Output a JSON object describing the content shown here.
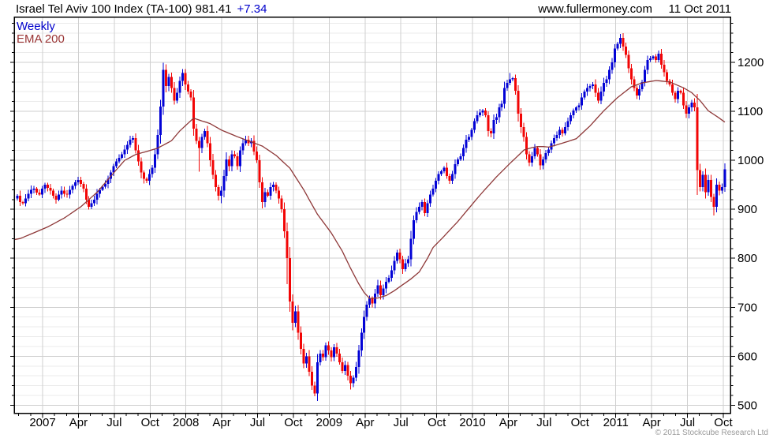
{
  "header": {
    "title_text": "Israel Tel Aviv 100 Index (TA-100) 981.41",
    "change_text": "+7.34",
    "website": "www.fullermoney.com",
    "date": "11 Oct 2011"
  },
  "legend": {
    "timeframe": "Weekly",
    "overlay": "EMA 200"
  },
  "footer": {
    "copyright": "© 2011 Stockcube Research Ltd"
  },
  "colors": {
    "up": "#0303d6",
    "down": "#f20505",
    "ema": "#8e3838",
    "accent_blue": "#0000cc",
    "grid_major": "#cfcfcf",
    "grid_minor": "#ebebeb",
    "border": "#000000",
    "copyright_gray": "#9a9a9a"
  },
  "chart_data": {
    "type": "candlestick",
    "title": "Israel Tel Aviv 100 Index (TA-100)",
    "timeframe": "Weekly",
    "overlay": "EMA 200",
    "last_price": 981.41,
    "change": 7.34,
    "as_of_date": "11 Oct 2011",
    "y_axis": {
      "tick_labels": [
        "500",
        "600",
        "700",
        "800",
        "900",
        "1000",
        "1100",
        "1200"
      ],
      "major_step": 100,
      "minor_step": 20,
      "ylim": [
        484,
        1292
      ],
      "side": "right"
    },
    "x_axis": {
      "tick_labels": [
        "2007",
        "Apr",
        "Jul",
        "Oct",
        "2008",
        "Apr",
        "Jul",
        "Oct",
        "2009",
        "Apr",
        "Jul",
        "Oct",
        "2010",
        "Apr",
        "Jul",
        "Oct",
        "2011",
        "Apr",
        "Jul",
        "Oct"
      ]
    },
    "first_open": 922,
    "weekly_closes": [
      928,
      915,
      912,
      922,
      932,
      940,
      942,
      934,
      930,
      942,
      950,
      944,
      938,
      928,
      920,
      930,
      938,
      932,
      930,
      940,
      948,
      955,
      960,
      952,
      942,
      920,
      905,
      912,
      920,
      932,
      940,
      946,
      952,
      962,
      975,
      988,
      998,
      1005,
      1012,
      1022,
      1032,
      1042,
      1045,
      1020,
      998,
      975,
      962,
      958,
      972,
      985,
      1012,
      1052,
      1110,
      1185,
      1152,
      1170,
      1148,
      1122,
      1138,
      1162,
      1178,
      1155,
      1140,
      1128,
      1065,
      1040,
      1025,
      1048,
      1060,
      1035,
      1000,
      970,
      945,
      928,
      938,
      968,
      1002,
      988,
      1012,
      1008,
      988,
      1020,
      1035,
      1042,
      1035,
      1040,
      1018,
      1000,
      955,
      915,
      935,
      928,
      945,
      950,
      938,
      922,
      900,
      855,
      800,
      712,
      668,
      692,
      648,
      615,
      585,
      600,
      568,
      540,
      524,
      588,
      605,
      598,
      622,
      612,
      598,
      618,
      605,
      588,
      570,
      582,
      560,
      545,
      556,
      578,
      612,
      648,
      680,
      705,
      718,
      708,
      728,
      745,
      725,
      738,
      752,
      760,
      775,
      795,
      812,
      798,
      778,
      790,
      798,
      840,
      878,
      895,
      905,
      915,
      892,
      912,
      930,
      942,
      958,
      972,
      978,
      985,
      968,
      958,
      972,
      992,
      1002,
      1008,
      1025,
      1042,
      1048,
      1062,
      1080,
      1092,
      1098,
      1102,
      1092,
      1060,
      1055,
      1082,
      1088,
      1108,
      1115,
      1148,
      1158,
      1165,
      1168,
      1142,
      1095,
      1068,
      1048,
      1012,
      995,
      1008,
      1025,
      1012,
      990,
      1002,
      1015,
      1022,
      1035,
      1045,
      1052,
      1062,
      1055,
      1068,
      1080,
      1092,
      1102,
      1108,
      1112,
      1128,
      1140,
      1148,
      1152,
      1155,
      1138,
      1122,
      1140,
      1158,
      1165,
      1185,
      1200,
      1228,
      1238,
      1250,
      1232,
      1215,
      1188,
      1165,
      1148,
      1132,
      1145,
      1160,
      1185,
      1205,
      1208,
      1212,
      1205,
      1218,
      1195,
      1180,
      1162,
      1155,
      1138,
      1125,
      1142,
      1138,
      1112,
      1095,
      1108,
      1118,
      1108,
      980,
      945,
      970,
      935,
      960,
      925,
      905,
      950,
      938,
      945,
      981.41
    ],
    "wick_overrides": [
      {
        "week": 53,
        "high": 1199
      },
      {
        "week": 66,
        "low": 977
      },
      {
        "week": 74,
        "low": 912
      },
      {
        "week": 98,
        "low": 747
      },
      {
        "week": 108,
        "low": 518
      },
      {
        "week": 121,
        "low": 532
      },
      {
        "week": 179,
        "high": 1178
      },
      {
        "week": 184,
        "low": 1038
      },
      {
        "week": 219,
        "high": 1258
      },
      {
        "week": 247,
        "low": 929
      },
      {
        "week": 253,
        "low": 887
      }
    ],
    "ema_anchors": [
      [
        0,
        838
      ],
      [
        6,
        852
      ],
      [
        11,
        864
      ],
      [
        17,
        882
      ],
      [
        23,
        905
      ],
      [
        29,
        935
      ],
      [
        34,
        968
      ],
      [
        39,
        1000
      ],
      [
        43,
        1012
      ],
      [
        47,
        1018
      ],
      [
        51,
        1025
      ],
      [
        56,
        1040
      ],
      [
        59,
        1060
      ],
      [
        64,
        1086
      ],
      [
        70,
        1075
      ],
      [
        74,
        1062
      ],
      [
        80,
        1048
      ],
      [
        89,
        1029
      ],
      [
        94,
        1010
      ],
      [
        99,
        984
      ],
      [
        104,
        940
      ],
      [
        109,
        890
      ],
      [
        114,
        852
      ],
      [
        118,
        815
      ],
      [
        121,
        780
      ],
      [
        124,
        748
      ],
      [
        126,
        730
      ],
      [
        128,
        718
      ],
      [
        131,
        719
      ],
      [
        134,
        724
      ],
      [
        137,
        734
      ],
      [
        140,
        746
      ],
      [
        143,
        758
      ],
      [
        146,
        772
      ],
      [
        149,
        800
      ],
      [
        151,
        822
      ],
      [
        155,
        845
      ],
      [
        160,
        875
      ],
      [
        164,
        902
      ],
      [
        169,
        935
      ],
      [
        174,
        966
      ],
      [
        179,
        994
      ],
      [
        182,
        1010
      ],
      [
        184,
        1021
      ],
      [
        187,
        1026
      ],
      [
        189,
        1028
      ],
      [
        191,
        1028
      ],
      [
        193,
        1027
      ],
      [
        195,
        1030
      ],
      [
        198,
        1035
      ],
      [
        203,
        1044
      ],
      [
        208,
        1070
      ],
      [
        213,
        1101
      ],
      [
        218,
        1128
      ],
      [
        223,
        1150
      ],
      [
        227,
        1158
      ],
      [
        232,
        1163
      ],
      [
        237,
        1160
      ],
      [
        242,
        1148
      ],
      [
        245,
        1138
      ],
      [
        248,
        1122
      ],
      [
        251,
        1101
      ],
      [
        254,
        1090
      ],
      [
        257,
        1078
      ]
    ]
  }
}
